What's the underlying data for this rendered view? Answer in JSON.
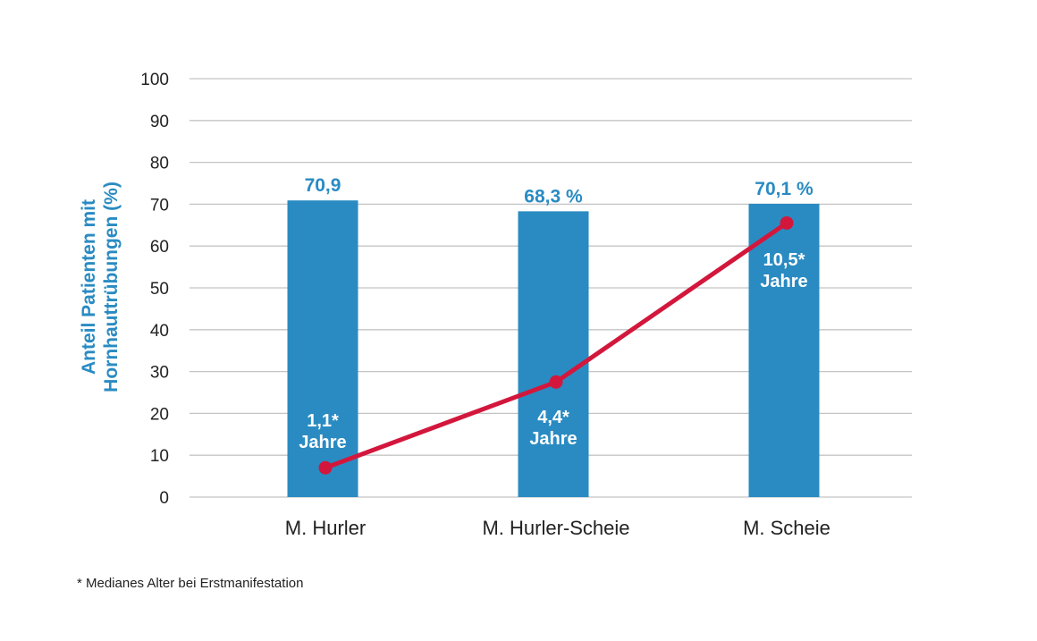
{
  "chart_data": {
    "type": "bar",
    "categories": [
      "M. Hurler",
      "M. Hurler-Scheie",
      "M. Scheie"
    ],
    "series": [
      {
        "type": "bar",
        "values": [
          70.9,
          68.3,
          70.1
        ],
        "labels": [
          "70,9",
          "68,3 %",
          "70,1 %"
        ]
      },
      {
        "type": "line",
        "values": [
          7,
          27.5,
          65.5
        ],
        "labels": [
          [
            "1,1*",
            "Jahre"
          ],
          [
            "4,4*",
            "Jahre"
          ],
          [
            "10,5*",
            "Jahre"
          ]
        ]
      }
    ],
    "ylabel_lines": [
      "Anteil Patienten mit",
      "Hornhauttrübungen (%)"
    ],
    "ylim": [
      0,
      100
    ],
    "yticks": [
      0,
      10,
      20,
      30,
      40,
      50,
      60,
      70,
      80,
      90,
      100
    ],
    "grid": true,
    "colors": {
      "bar": "#2a8bc2",
      "line": "#d3173c",
      "axis_title": "#2a8bc2",
      "value_label": "#2a8bc2"
    }
  },
  "footnote": "* Medianes Alter bei Erstmanifestation"
}
